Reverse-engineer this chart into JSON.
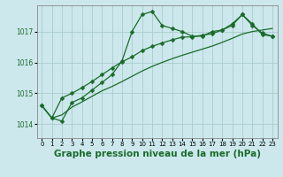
{
  "title": "Graphe pression niveau de la mer (hPa)",
  "bg_color": "#cce8ec",
  "grid_color": "#aacccc",
  "line_color": "#1a6b2a",
  "x_ticks": [
    0,
    1,
    2,
    3,
    4,
    5,
    6,
    7,
    8,
    9,
    10,
    11,
    12,
    13,
    14,
    15,
    16,
    17,
    18,
    19,
    20,
    21,
    22,
    23
  ],
  "y_ticks": [
    1014,
    1015,
    1016,
    1017
  ],
  "ylim": [
    1013.55,
    1017.85
  ],
  "xlim": [
    -0.5,
    23.5
  ],
  "line_a": [
    1014.6,
    1014.2,
    1014.1,
    1014.7,
    1014.85,
    1015.1,
    1015.35,
    1015.6,
    1016.05,
    1017.0,
    1017.55,
    1017.65,
    1017.2,
    1017.1,
    1017.0,
    1016.85,
    1016.85,
    1017.0,
    1017.05,
    1017.2,
    1017.55,
    1017.2,
    1016.95,
    1016.85
  ],
  "line_b": [
    1014.6,
    1014.2,
    1014.3,
    1014.55,
    1014.72,
    1014.9,
    1015.08,
    1015.22,
    1015.38,
    1015.55,
    1015.72,
    1015.87,
    1016.0,
    1016.12,
    1016.23,
    1016.33,
    1016.43,
    1016.53,
    1016.65,
    1016.78,
    1016.92,
    1017.0,
    1017.05,
    1017.1
  ],
  "line_c": [
    1014.6,
    1014.2,
    1014.85,
    1015.0,
    1015.18,
    1015.38,
    1015.6,
    1015.82,
    1016.02,
    1016.18,
    1016.38,
    1016.52,
    1016.63,
    1016.73,
    1016.82,
    1016.83,
    1016.88,
    1016.93,
    1017.05,
    1017.25,
    1017.55,
    1017.25,
    1016.9,
    1016.85
  ],
  "marker_size": 2.5,
  "line_width": 0.9,
  "title_fontsize": 7.5,
  "tick_fontsize": 5.5
}
